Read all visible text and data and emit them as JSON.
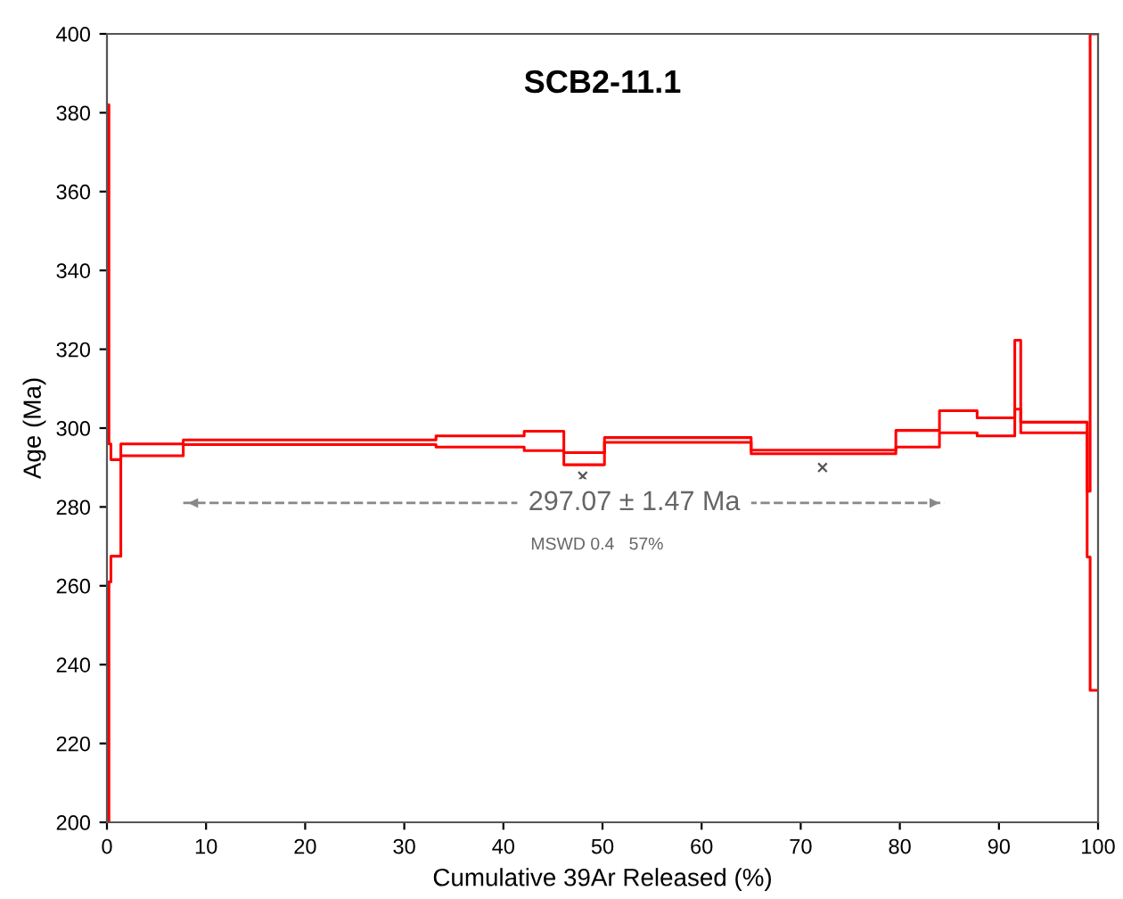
{
  "chart_data": {
    "type": "step",
    "title": "SCB2-11.1",
    "xlabel": "Cumulative 39Ar Released (%)",
    "ylabel": "Age (Ma)",
    "series": [
      {
        "color": "#ff0000",
        "x": [
          0,
          0.2,
          0.4,
          1.4,
          7.7,
          33.2,
          42.1,
          46.1,
          50.2,
          65.0,
          79.6,
          84.0,
          87.8,
          91.6,
          92.2,
          98.9,
          99.2,
          100
        ],
        "values": [
          382,
          296,
          292,
          296,
          297.0,
          298.0,
          299.2,
          293.8,
          297.6,
          294.4,
          299.4,
          304.4,
          302.6,
          322.3,
          301.5,
          284.0,
          400,
          400
        ]
      },
      {
        "color": "#ff0000",
        "x": [
          0,
          0.2,
          0.4,
          1.4,
          7.7,
          33.2,
          42.1,
          46.1,
          50.2,
          65.0,
          79.6,
          84.0,
          87.8,
          91.6,
          92.2,
          98.9,
          99.2,
          100
        ],
        "values": [
          200,
          261,
          267.5,
          293,
          295.8,
          295.2,
          294.3,
          290.7,
          296.4,
          293.5,
          295.2,
          298.8,
          298.0,
          304.8,
          298.8,
          267.3,
          233.5,
          233.5
        ]
      },
      {
        "type": "line",
        "color": "#888888",
        "line_style": "dashed",
        "x": [
          7.7,
          84.5
        ],
        "values": [
          281,
          281
        ]
      },
      {
        "type": "scatter",
        "color": "#555555",
        "marker": "cross",
        "x": [
          48.0,
          72.2
        ],
        "values": [
          287.8,
          290.0
        ]
      }
    ],
    "annotations": [
      {
        "text": "297.07 ± 1.47 Ma",
        "x": 53.2,
        "y": 281
      },
      "MSWD 0.4   57%"
    ],
    "xlim": [
      0,
      100
    ],
    "xticks": [
      0,
      10,
      20,
      30,
      40,
      50,
      60,
      70,
      80,
      90,
      100
    ],
    "ylim": [
      200,
      400
    ],
    "yticks": [
      200,
      220,
      240,
      260,
      280,
      300,
      320,
      340,
      360,
      380,
      400
    ],
    "grid": false,
    "legend": false
  }
}
